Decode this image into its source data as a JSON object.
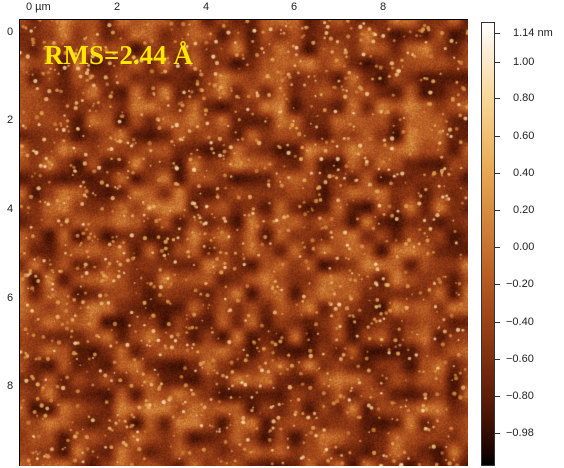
{
  "x_axis": {
    "ticks": [
      "0 µm",
      "2",
      "4",
      "6",
      "8"
    ]
  },
  "y_axis": {
    "ticks": [
      "0",
      "2",
      "4",
      "6",
      "8"
    ]
  },
  "annotation": {
    "rms": "RMS=2.44 Å"
  },
  "colorbar": {
    "top_label": "1.14 nm",
    "labels": [
      "1.00",
      "0.80",
      "0.60",
      "0.40",
      "0.20",
      "0.00",
      "−0.20",
      "−0.40",
      "−0.60",
      "−0.80",
      "−0.98"
    ],
    "range": [
      -0.98,
      1.14
    ],
    "unit": "nm"
  },
  "colors": {
    "annotation": "#ffe600",
    "colormap": "afmhot"
  }
}
